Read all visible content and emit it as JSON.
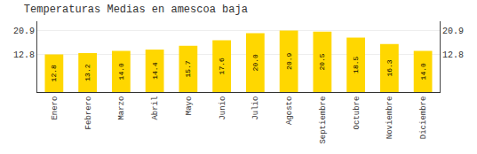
{
  "chart_data": {
    "type": "bar",
    "title": "Temperaturas Medias en amescoa baja",
    "categories": [
      "Enero",
      "Febrero",
      "Marzo",
      "Abril",
      "Mayo",
      "Junio",
      "Julio",
      "Agosto",
      "Septiembre",
      "Octubre",
      "Noviembre",
      "Diciembre"
    ],
    "values": [
      12.8,
      13.2,
      14.0,
      14.4,
      15.7,
      17.6,
      20.0,
      20.9,
      20.5,
      18.5,
      16.3,
      14.0
    ],
    "value_labels": [
      "12.8",
      "13.2",
      "14.0",
      "14.4",
      "15.7",
      "17.6",
      "20.0",
      "20.9",
      "20.5",
      "18.5",
      "16.3",
      "14.0"
    ],
    "color": "#FFD700",
    "ylim": [
      0,
      24.035
    ],
    "yticks": [
      12.8,
      20.9
    ],
    "grid": true,
    "data_labels": true
  }
}
